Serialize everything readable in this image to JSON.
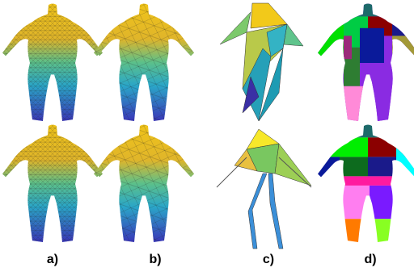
{
  "labels": [
    "a)",
    "b)",
    "c)",
    "d)"
  ]
}
